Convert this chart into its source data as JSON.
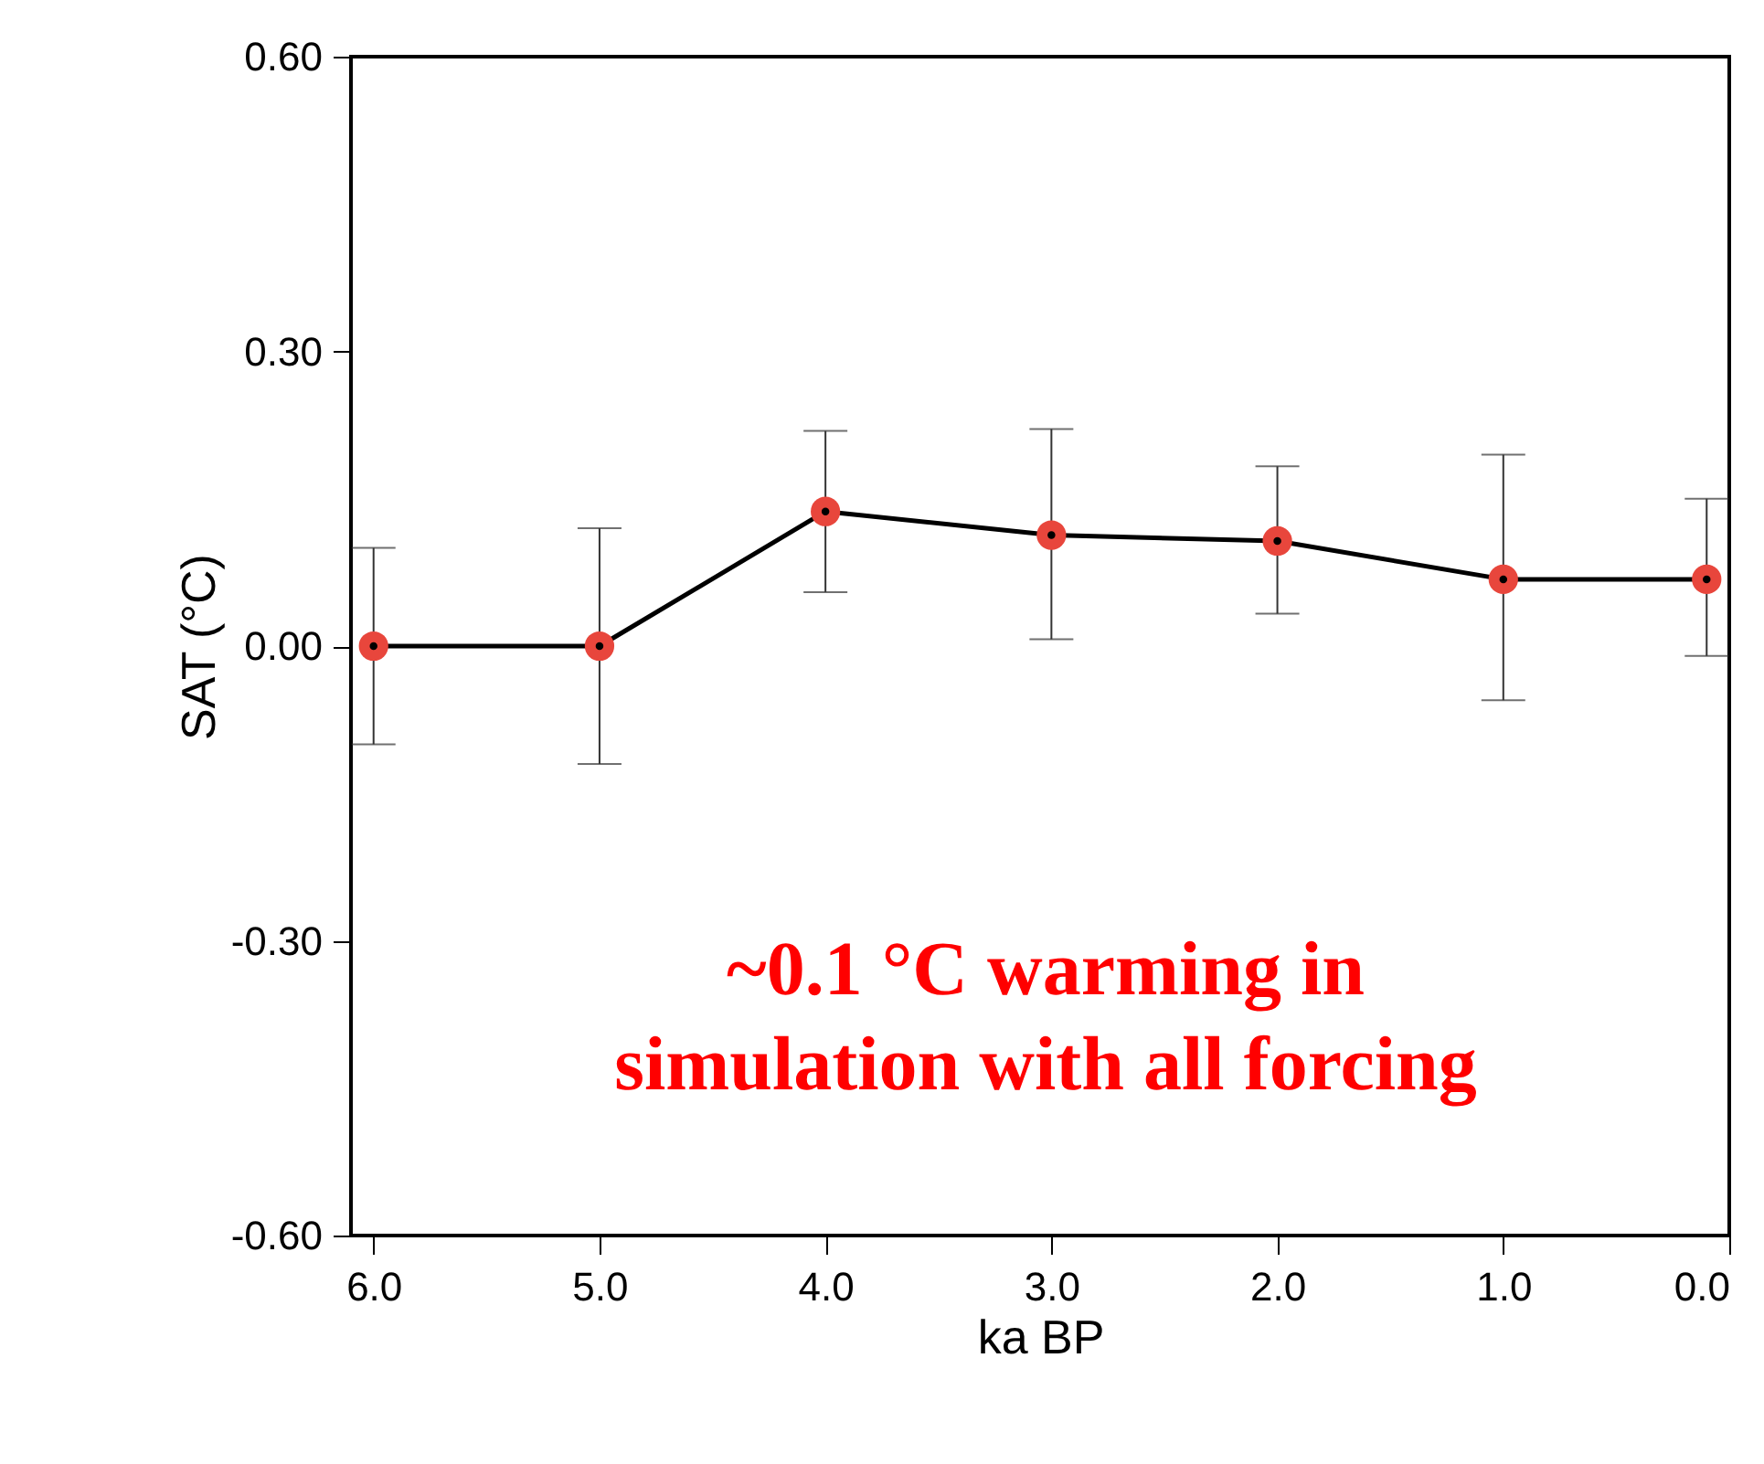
{
  "chart_data": {
    "type": "line",
    "xlabel": "ka BP",
    "ylabel": "SAT (°C)",
    "x": [
      6.0,
      5.0,
      4.0,
      3.0,
      2.0,
      1.0,
      0.1
    ],
    "series": [
      {
        "color": "#000000",
        "colors": [
          "#e8463c",
          "#e8463c",
          "#e8463c",
          "#e8463c",
          "#e8463c",
          "#e8463c",
          "#e8463c"
        ],
        "values": [
          0.0,
          0.0,
          0.137,
          0.113,
          0.107,
          0.068,
          0.068
        ],
        "errors": [
          [
            -0.1,
            0.1
          ],
          [
            -0.12,
            0.12
          ],
          [
            0.055,
            0.219
          ],
          [
            0.007,
            0.221
          ],
          [
            0.033,
            0.183
          ],
          [
            -0.055,
            0.195
          ],
          [
            -0.01,
            0.15
          ]
        ]
      }
    ],
    "xlim": [
      6.1,
      0.0
    ],
    "ylim": [
      -0.6,
      0.6
    ],
    "xticks": [
      {
        "value": 6,
        "label": "6.0"
      },
      {
        "value": 5,
        "label": "5.0"
      },
      {
        "value": 4,
        "label": "4.0"
      },
      {
        "value": 3,
        "label": "3.0"
      },
      {
        "value": 2,
        "label": "2.0"
      },
      {
        "value": 1,
        "label": "1.0"
      },
      {
        "value": 0,
        "label": "0.0"
      }
    ],
    "yticks": [
      {
        "value": -0.6,
        "label": "-0.60"
      },
      {
        "value": -0.3,
        "label": "-0.30"
      },
      {
        "value": 0,
        "label": "0.00"
      },
      {
        "value": 0.3,
        "label": "0.30"
      },
      {
        "value": 0.6,
        "label": "0.60"
      }
    ],
    "annotations": [
      "~0.1 °C warming in\nsimulation with all forcing"
    ],
    "grid": false,
    "marker": "circle",
    "line_style": "solid"
  }
}
